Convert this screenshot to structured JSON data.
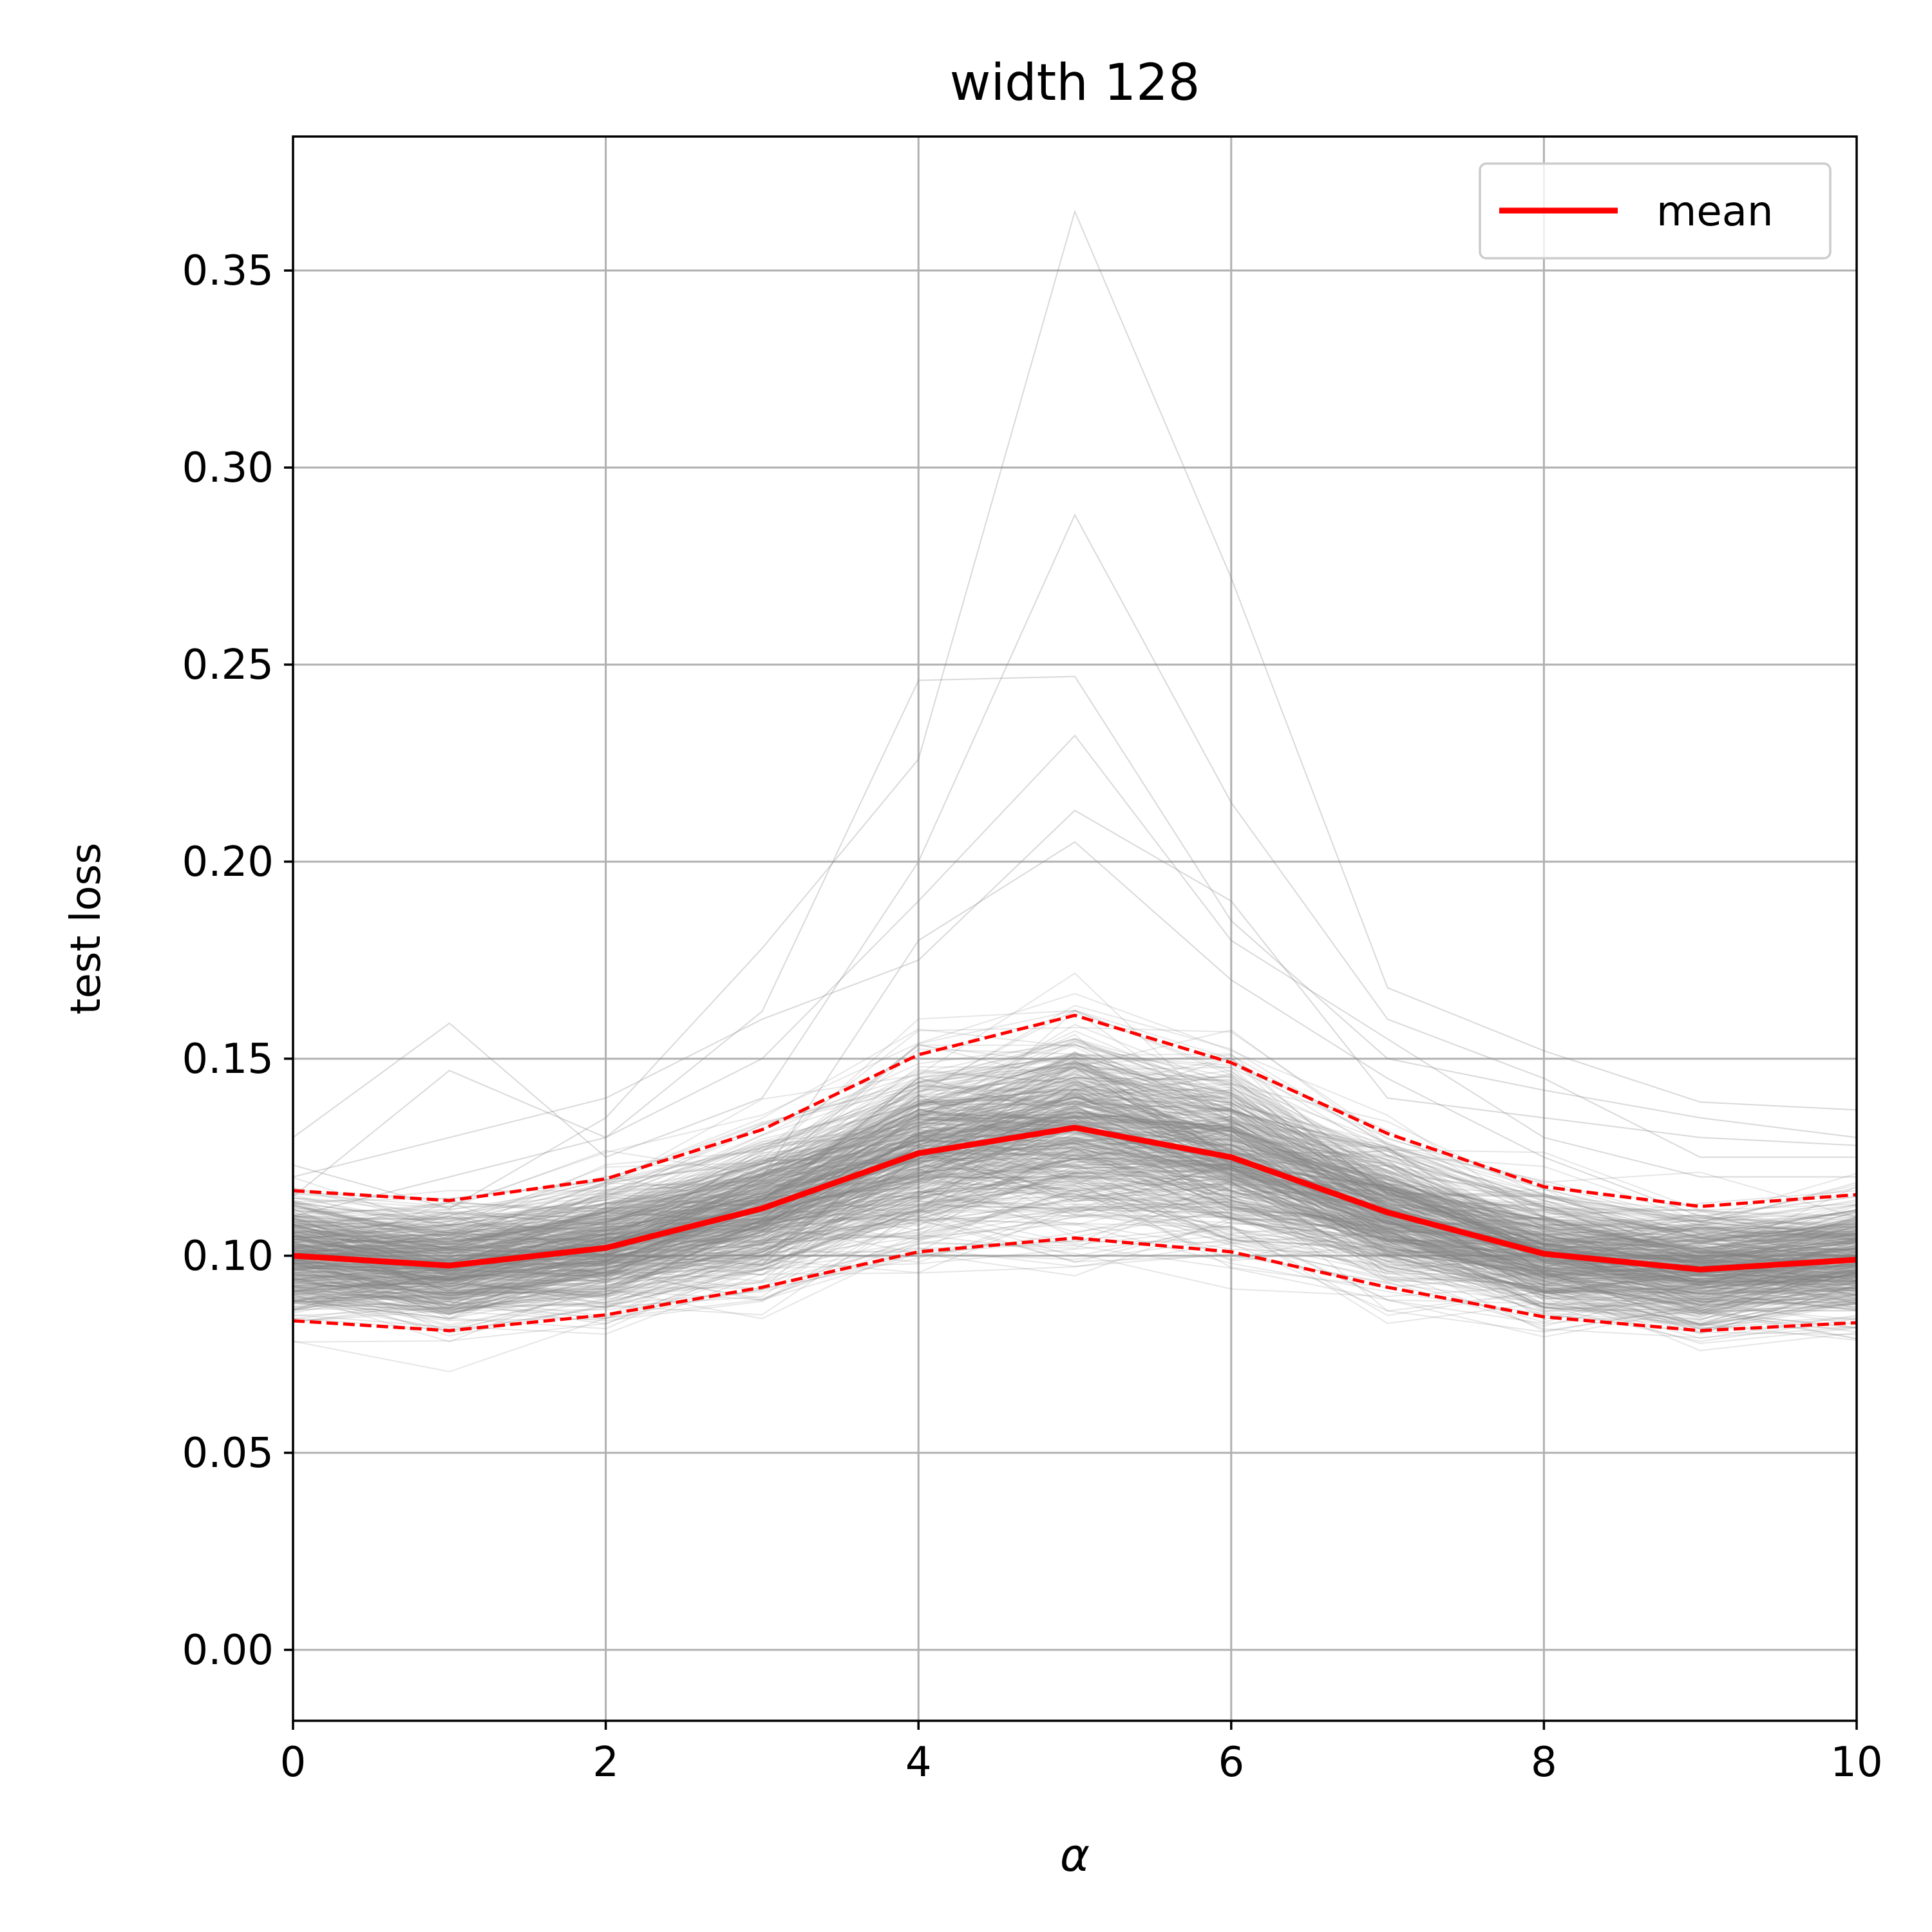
{
  "chart_data": {
    "type": "line",
    "title": "width 128",
    "xlabel": "α",
    "ylabel": "test loss",
    "xlim": [
      0,
      10
    ],
    "ylim": [
      -0.018,
      0.384
    ],
    "grid": true,
    "legend": {
      "placement": "top-right",
      "entries": [
        {
          "label": "mean",
          "color": "#ff0000",
          "style": "solid"
        }
      ]
    },
    "x": [
      0,
      1,
      2,
      3,
      4,
      5,
      6,
      7,
      8,
      9,
      10
    ],
    "xticks": [
      0,
      2,
      4,
      6,
      8,
      10
    ],
    "xtick_labels": [
      "0",
      "2",
      "4",
      "6",
      "8",
      "10"
    ],
    "yticks": [
      0.0,
      0.05,
      0.1,
      0.15,
      0.2,
      0.25,
      0.3,
      0.35
    ],
    "ytick_labels": [
      "0.00",
      "0.05",
      "0.10",
      "0.15",
      "0.20",
      "0.25",
      "0.30",
      "0.35"
    ],
    "series": [
      {
        "name": "mean",
        "color": "#ff0000",
        "style": "solid",
        "values": [
          0.1,
          0.0975,
          0.102,
          0.112,
          0.126,
          0.1325,
          0.125,
          0.111,
          0.1005,
          0.0965,
          0.099
        ]
      },
      {
        "color": "#ff0000",
        "style": "dashed",
        "values": [
          0.1165,
          0.114,
          0.1195,
          0.132,
          0.151,
          0.161,
          0.149,
          0.131,
          0.1175,
          0.1125,
          0.1155
        ]
      },
      {
        "color": "#ff0000",
        "style": "dashed",
        "values": [
          0.0835,
          0.081,
          0.085,
          0.092,
          0.101,
          0.1045,
          0.101,
          0.092,
          0.0845,
          0.081,
          0.083
        ]
      }
    ],
    "individual_runs": {
      "color": "#808080",
      "opacity": 0.2,
      "highlighted": [
        [
          0.123,
          0.112,
          0.135,
          0.178,
          0.226,
          0.365,
          0.272,
          0.168,
          0.152,
          0.139,
          0.137
        ],
        [
          0.115,
          0.147,
          0.13,
          0.162,
          0.246,
          0.247,
          0.185,
          0.15,
          0.142,
          0.135,
          0.13
        ],
        [
          0.13,
          0.159,
          0.125,
          0.14,
          0.2,
          0.288,
          0.215,
          0.16,
          0.145,
          0.125,
          0.125
        ],
        [
          0.11,
          0.12,
          0.13,
          0.15,
          0.19,
          0.232,
          0.18,
          0.155,
          0.13,
          0.12,
          0.12
        ],
        [
          0.12,
          0.13,
          0.14,
          0.16,
          0.175,
          0.213,
          0.19,
          0.14,
          0.135,
          0.13,
          0.128
        ],
        [
          0.105,
          0.11,
          0.1,
          0.12,
          0.18,
          0.205,
          0.17,
          0.145,
          0.125,
          0.11,
          0.115
        ]
      ]
    }
  }
}
